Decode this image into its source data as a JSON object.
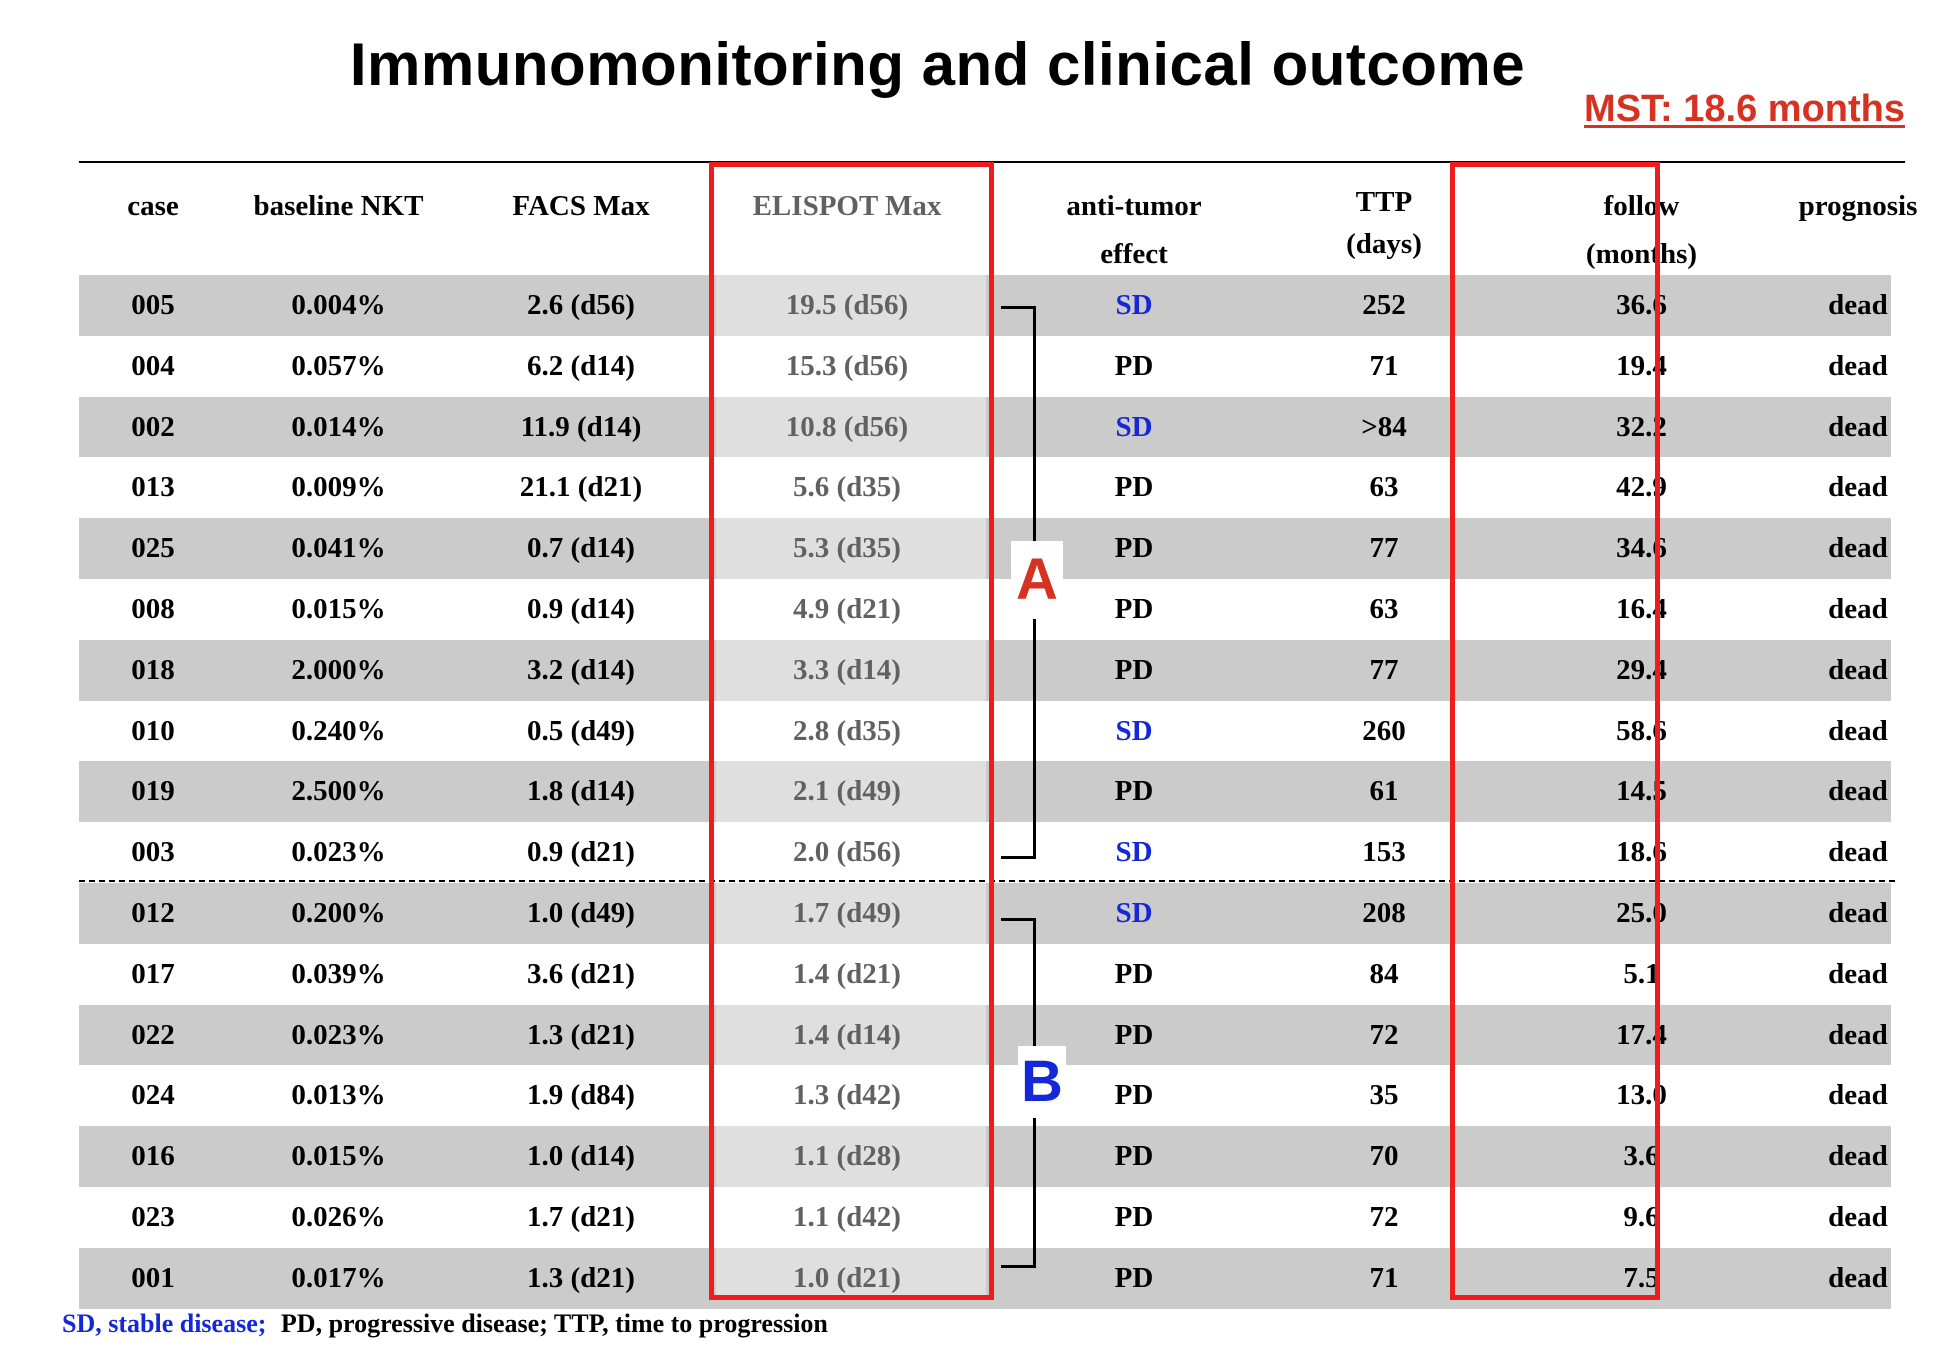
{
  "title": "Immunomonitoring and clinical outcome",
  "mst": "MST: 18.6 months",
  "columns": [
    {
      "line1": "case",
      "line2": ""
    },
    {
      "line1": "baseline NKT",
      "line2": ""
    },
    {
      "line1": "FACS Max",
      "line2": ""
    },
    {
      "line1": "ELISPOT Max",
      "line2": ""
    },
    {
      "line1": "anti-tumor",
      "line2": "effect"
    },
    {
      "line1": "TTP",
      "line2": "(days)"
    },
    {
      "line1": "follow",
      "line2": "(months)"
    },
    {
      "line1": "prognosis",
      "line2": ""
    }
  ],
  "rows": [
    {
      "case": "005",
      "nkt": "0.004%",
      "facs": "2.6 (d56)",
      "elispot": "19.5 (d56)",
      "effect": "SD",
      "ttp": "252",
      "follow": "36.6",
      "prognosis": "dead"
    },
    {
      "case": "004",
      "nkt": "0.057%",
      "facs": "6.2 (d14)",
      "elispot": "15.3 (d56)",
      "effect": "PD",
      "ttp": "71",
      "follow": "19.4",
      "prognosis": "dead"
    },
    {
      "case": "002",
      "nkt": "0.014%",
      "facs": "11.9 (d14)",
      "elispot": "10.8 (d56)",
      "effect": "SD",
      "ttp": ">84",
      "follow": "32.2",
      "prognosis": "dead"
    },
    {
      "case": "013",
      "nkt": "0.009%",
      "facs": "21.1 (d21)",
      "elispot": "5.6 (d35)",
      "effect": "PD",
      "ttp": "63",
      "follow": "42.9",
      "prognosis": "dead"
    },
    {
      "case": "025",
      "nkt": "0.041%",
      "facs": "0.7 (d14)",
      "elispot": "5.3 (d35)",
      "effect": "PD",
      "ttp": "77",
      "follow": "34.6",
      "prognosis": "dead"
    },
    {
      "case": "008",
      "nkt": "0.015%",
      "facs": "0.9 (d14)",
      "elispot": "4.9 (d21)",
      "effect": "PD",
      "ttp": "63",
      "follow": "16.4",
      "prognosis": "dead"
    },
    {
      "case": "018",
      "nkt": "2.000%",
      "facs": "3.2 (d14)",
      "elispot": "3.3 (d14)",
      "effect": "PD",
      "ttp": "77",
      "follow": "29.4",
      "prognosis": "dead"
    },
    {
      "case": "010",
      "nkt": "0.240%",
      "facs": "0.5 (d49)",
      "elispot": "2.8 (d35)",
      "effect": "SD",
      "ttp": "260",
      "follow": "58.6",
      "prognosis": "dead"
    },
    {
      "case": "019",
      "nkt": "2.500%",
      "facs": "1.8 (d14)",
      "elispot": "2.1 (d49)",
      "effect": "PD",
      "ttp": "61",
      "follow": "14.5",
      "prognosis": "dead"
    },
    {
      "case": "003",
      "nkt": "0.023%",
      "facs": "0.9 (d21)",
      "elispot": "2.0 (d56)",
      "effect": "SD",
      "ttp": "153",
      "follow": "18.6",
      "prognosis": "dead"
    },
    {
      "case": "012",
      "nkt": "0.200%",
      "facs": "1.0 (d49)",
      "elispot": "1.7 (d49)",
      "effect": "SD",
      "ttp": "208",
      "follow": "25.0",
      "prognosis": "dead"
    },
    {
      "case": "017",
      "nkt": "0.039%",
      "facs": "3.6 (d21)",
      "elispot": "1.4 (d21)",
      "effect": "PD",
      "ttp": "84",
      "follow": "5.1",
      "prognosis": "dead"
    },
    {
      "case": "022",
      "nkt": "0.023%",
      "facs": "1.3 (d21)",
      "elispot": "1.4 (d14)",
      "effect": "PD",
      "ttp": "72",
      "follow": "17.4",
      "prognosis": "dead"
    },
    {
      "case": "024",
      "nkt": "0.013%",
      "facs": "1.9 (d84)",
      "elispot": "1.3 (d42)",
      "effect": "PD",
      "ttp": "35",
      "follow": "13.0",
      "prognosis": "dead"
    },
    {
      "case": "016",
      "nkt": "0.015%",
      "facs": "1.0 (d14)",
      "elispot": "1.1 (d28)",
      "effect": "PD",
      "ttp": "70",
      "follow": "3.6",
      "prognosis": "dead"
    },
    {
      "case": "023",
      "nkt": "0.026%",
      "facs": "1.7 (d21)",
      "elispot": "1.1 (d42)",
      "effect": "PD",
      "ttp": "72",
      "follow": "9.6",
      "prognosis": "dead"
    },
    {
      "case": "001",
      "nkt": "0.017%",
      "facs": "1.3 (d21)",
      "elispot": "1.0 (d21)",
      "effect": "PD",
      "ttp": "71",
      "follow": "7.5",
      "prognosis": "dead"
    }
  ],
  "groups": {
    "a": "A",
    "b": "B"
  },
  "footnote": {
    "sd": "SD, stable disease;",
    "rest": "PD, progressive disease; TTP, time to progression"
  },
  "colors": {
    "sd": "#1428d8",
    "highlight": "#ee1c1c",
    "mst": "#d63222",
    "shade": "#cbcbcb",
    "group_a": "#d63222",
    "group_b": "#1428d8"
  }
}
